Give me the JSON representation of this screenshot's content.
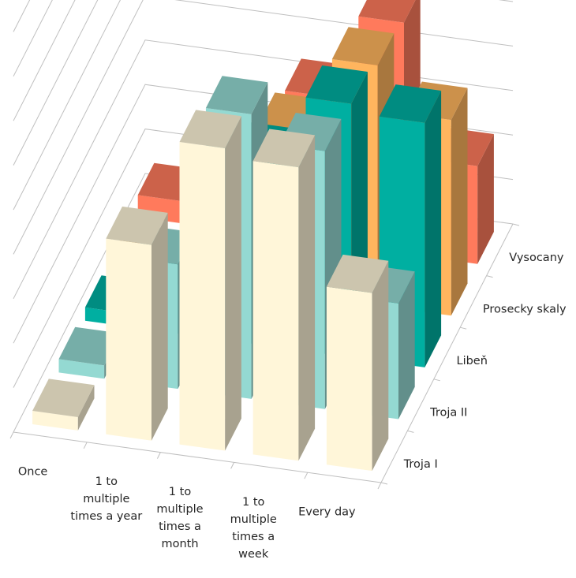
{
  "chart_data": {
    "type": "bar3d",
    "title": "",
    "xlabel": "",
    "ylabel": "",
    "zlim": [
      0,
      100
    ],
    "grid": true,
    "legend": "none",
    "categories": [
      [
        "Once"
      ],
      [
        "1 to",
        "multiple",
        "times a year"
      ],
      [
        "1 to",
        "multiple",
        "times a",
        "month"
      ],
      [
        "1 to",
        "multiple",
        "times a",
        "week"
      ],
      [
        "Every day"
      ]
    ],
    "series": [
      {
        "name": "Troja I",
        "color": "#FFF6D9",
        "values": [
          3,
          44,
          68,
          66,
          40
        ]
      },
      {
        "name": "Troja II",
        "color": "#94D9D2",
        "values": [
          3,
          28,
          64,
          58,
          26
        ]
      },
      {
        "name": "Libeň",
        "color": "#00AFA1",
        "values": [
          3,
          11,
          42,
          57,
          55
        ]
      },
      {
        "name": "Prosecky skaly",
        "color": "#FFB55E",
        "values": [
          3,
          11,
          37,
          54,
          44
        ]
      },
      {
        "name": "Vysocany",
        "color": "#FF7A5C",
        "values": [
          5,
          14,
          33,
          52,
          22
        ]
      }
    ]
  }
}
